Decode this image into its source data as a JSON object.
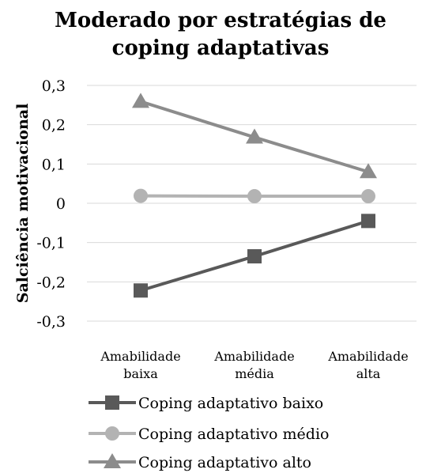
{
  "chart_data": {
    "type": "line",
    "title": [
      "Moderado por estratégias de",
      "coping adaptativas"
    ],
    "ylabel": "Salciência motivacional",
    "ylim": [
      -0.3,
      0.3
    ],
    "yticks": [
      0.3,
      0.2,
      0.1,
      0,
      -0.1,
      -0.2,
      -0.3
    ],
    "ytick_labels": [
      "0,3",
      "0,2",
      "0,1",
      "0",
      "-0,1",
      "-0,2",
      "-0,3"
    ],
    "categories": [
      [
        "Amabilidade",
        "baixa"
      ],
      [
        "Amabilidade",
        "média"
      ],
      [
        "Amabilidade",
        "alta"
      ]
    ],
    "grid": true,
    "legend_position": "bottom",
    "series": [
      {
        "name": "Coping adaptativo baixo",
        "values": [
          -0.222,
          -0.135,
          -0.045
        ],
        "color": "#595959",
        "marker": "square"
      },
      {
        "name": "Coping adaptativo médio",
        "values": [
          0.019,
          0.018,
          0.018
        ],
        "color": "#b3b3b3",
        "marker": "circle"
      },
      {
        "name": "Coping adaptativo alto",
        "values": [
          0.259,
          0.168,
          0.08
        ],
        "color": "#8c8c8c",
        "marker": "triangle"
      }
    ]
  }
}
